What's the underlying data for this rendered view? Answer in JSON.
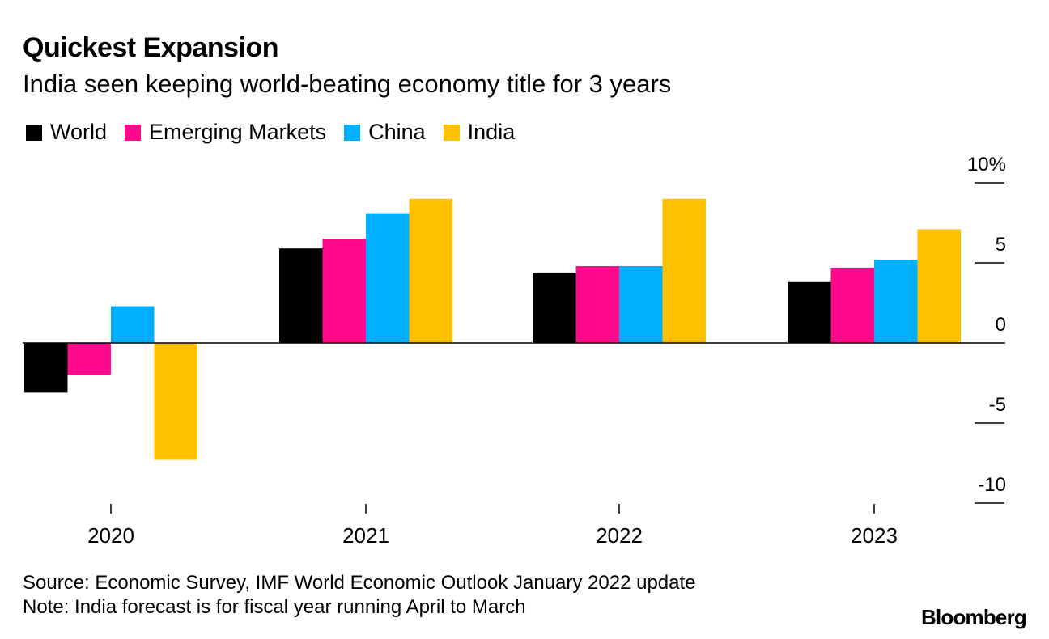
{
  "title": "Quickest Expansion",
  "subtitle": "India seen keeping world-beating economy title for 3 years",
  "source": "Source: Economic Survey, IMF World Economic Outlook January 2022 update",
  "note": "Note: India forecast is for fiscal year running April to March",
  "brand": "Bloomberg",
  "colors": {
    "World": "#000000",
    "Emerging Markets": "#ff0a8c",
    "China": "#00b0ff",
    "India": "#ffc000",
    "axis": "#000000"
  },
  "chart_data": {
    "type": "bar",
    "title": "Quickest Expansion",
    "subtitle": "India seen keeping world-beating economy title for 3 years",
    "xlabel": "",
    "ylabel": "",
    "categories": [
      "2020",
      "2021",
      "2022",
      "2023"
    ],
    "series": [
      {
        "name": "World",
        "values": [
          -3.1,
          5.9,
          4.4,
          3.8
        ]
      },
      {
        "name": "Emerging Markets",
        "values": [
          -2.0,
          6.5,
          4.8,
          4.7
        ]
      },
      {
        "name": "China",
        "values": [
          2.3,
          8.1,
          4.8,
          5.2
        ]
      },
      {
        "name": "India",
        "values": [
          -7.3,
          9.0,
          9.0,
          7.1
        ]
      }
    ],
    "ylim": [
      -10,
      10
    ],
    "yticks": [
      10,
      5,
      0,
      -5,
      -10
    ],
    "ytick_labels": [
      "10%",
      "5",
      "0",
      "-5",
      "-10"
    ],
    "legend_position": "top-left",
    "grid": false
  }
}
